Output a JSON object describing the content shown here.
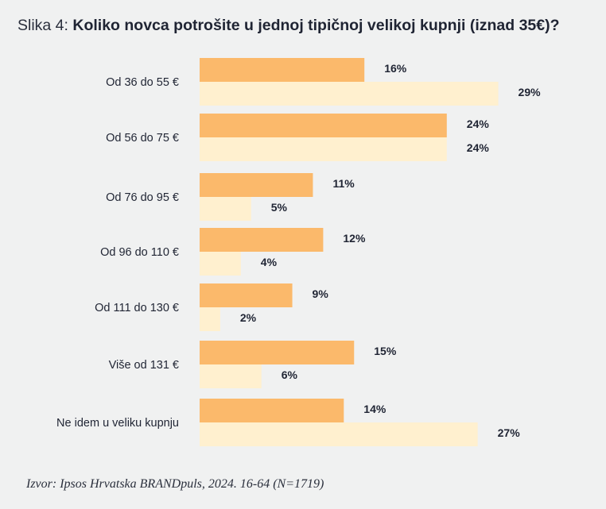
{
  "title": {
    "prefix": "Slika 4:",
    "main": "Koliko novca potrošite u jednoj tipičnoj velikoj kupnji (iznad 35€)?"
  },
  "source": "Izvor: Ipsos Hrvatska BRANDpuls, 2024. 16-64 (N=1719)",
  "colors": {
    "series_a": "#fbb96b",
    "series_b": "#fff0cf",
    "label": "#1f2433"
  },
  "chart_data": {
    "type": "bar",
    "orientation": "horizontal",
    "categories": [
      "Od 36 do 55 €",
      "Od 56 do 75 €",
      "Od 76 do 95 €",
      "Od 96 do 110 €",
      "Od 111 do 130 €",
      "Više od 131 €",
      "Ne idem u veliku kupnju"
    ],
    "series": [
      {
        "values": [
          16,
          24,
          11,
          12,
          9,
          15,
          14
        ]
      },
      {
        "values": [
          29,
          24,
          5,
          4,
          2,
          6,
          27
        ]
      }
    ],
    "value_suffix": "%",
    "xlim": [
      0,
      30
    ],
    "grid": false,
    "legend": "none"
  }
}
